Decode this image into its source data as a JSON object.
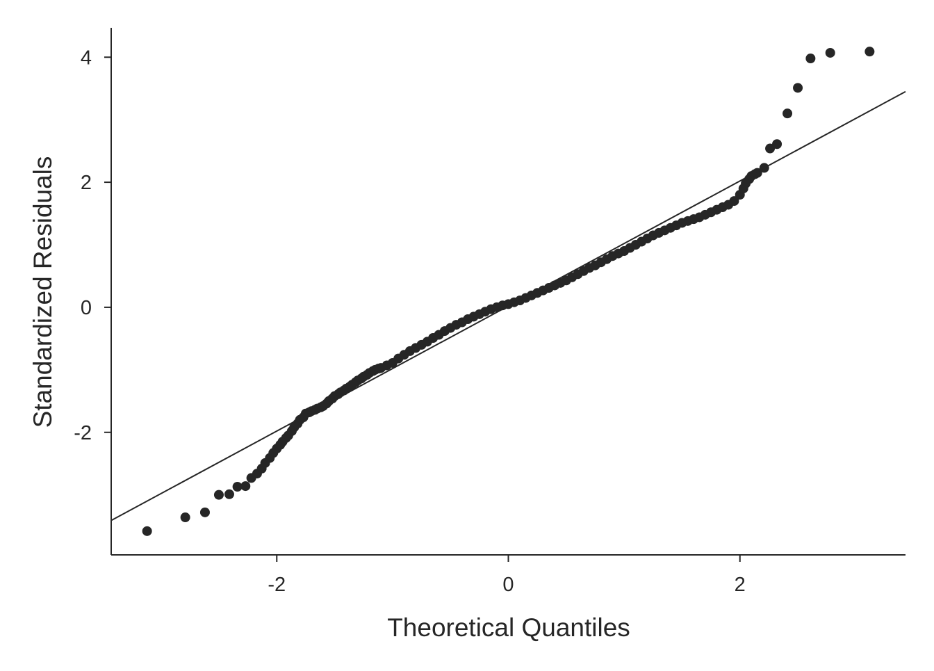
{
  "chart_data": {
    "type": "scatter",
    "title": "",
    "xlabel": "Theoretical Quantiles",
    "ylabel": "Standardized Residuals",
    "xlim": [
      -3.43,
      3.43
    ],
    "ylim": [
      -3.96,
      4.47
    ],
    "xticks": [
      -2,
      0,
      2
    ],
    "yticks": [
      -2,
      0,
      2,
      4
    ],
    "xtick_labels": [
      "-2",
      "0",
      "2"
    ],
    "ytick_labels": [
      "-2",
      "0",
      "2",
      "4"
    ],
    "grid": false,
    "reference_line": {
      "slope": 1.0,
      "intercept": 0.02
    },
    "color": "#262626",
    "points": [
      [
        -3.12,
        -3.58
      ],
      [
        -2.79,
        -3.36
      ],
      [
        -2.62,
        -3.28
      ],
      [
        -2.5,
        -3.0
      ],
      [
        -2.41,
        -2.99
      ],
      [
        -2.34,
        -2.87
      ],
      [
        -2.27,
        -2.86
      ],
      [
        -2.22,
        -2.73
      ],
      [
        -2.17,
        -2.66
      ],
      [
        -2.13,
        -2.58
      ],
      [
        -2.1,
        -2.49
      ],
      [
        -2.06,
        -2.41
      ],
      [
        -2.03,
        -2.33
      ],
      [
        -2.0,
        -2.26
      ],
      [
        -1.97,
        -2.2
      ],
      [
        -1.95,
        -2.15
      ],
      [
        -1.92,
        -2.09
      ],
      [
        -1.9,
        -2.05
      ],
      [
        -1.87,
        -1.98
      ],
      [
        -1.85,
        -1.92
      ],
      [
        -1.82,
        -1.86
      ],
      [
        -1.8,
        -1.8
      ],
      [
        -1.77,
        -1.76
      ],
      [
        -1.75,
        -1.7
      ],
      [
        -1.72,
        -1.68
      ],
      [
        -1.7,
        -1.66
      ],
      [
        -1.67,
        -1.64
      ],
      [
        -1.65,
        -1.62
      ],
      [
        -1.62,
        -1.6
      ],
      [
        -1.6,
        -1.58
      ],
      [
        -1.57,
        -1.54
      ],
      [
        -1.55,
        -1.5
      ],
      [
        -1.52,
        -1.46
      ],
      [
        -1.5,
        -1.42
      ],
      [
        -1.47,
        -1.39
      ],
      [
        -1.45,
        -1.36
      ],
      [
        -1.42,
        -1.33
      ],
      [
        -1.4,
        -1.3
      ],
      [
        -1.37,
        -1.27
      ],
      [
        -1.35,
        -1.24
      ],
      [
        -1.32,
        -1.2
      ],
      [
        -1.3,
        -1.17
      ],
      [
        -1.27,
        -1.14
      ],
      [
        -1.25,
        -1.11
      ],
      [
        -1.22,
        -1.08
      ],
      [
        -1.2,
        -1.05
      ],
      [
        -1.17,
        -1.02
      ],
      [
        -1.15,
        -1.0
      ],
      [
        -1.12,
        -0.98
      ],
      [
        -1.1,
        -0.97
      ],
      [
        -1.05,
        -0.93
      ],
      [
        -1.0,
        -0.89
      ],
      [
        -0.95,
        -0.82
      ],
      [
        -0.9,
        -0.76
      ],
      [
        -0.85,
        -0.7
      ],
      [
        -0.8,
        -0.65
      ],
      [
        -0.75,
        -0.6
      ],
      [
        -0.7,
        -0.55
      ],
      [
        -0.65,
        -0.49
      ],
      [
        -0.6,
        -0.44
      ],
      [
        -0.55,
        -0.38
      ],
      [
        -0.5,
        -0.33
      ],
      [
        -0.45,
        -0.28
      ],
      [
        -0.4,
        -0.24
      ],
      [
        -0.35,
        -0.19
      ],
      [
        -0.3,
        -0.15
      ],
      [
        -0.25,
        -0.11
      ],
      [
        -0.2,
        -0.07
      ],
      [
        -0.15,
        -0.03
      ],
      [
        -0.1,
        0.0
      ],
      [
        -0.05,
        0.03
      ],
      [
        0.0,
        0.05
      ],
      [
        0.05,
        0.08
      ],
      [
        0.1,
        0.11
      ],
      [
        0.15,
        0.15
      ],
      [
        0.2,
        0.19
      ],
      [
        0.25,
        0.23
      ],
      [
        0.3,
        0.27
      ],
      [
        0.35,
        0.31
      ],
      [
        0.4,
        0.35
      ],
      [
        0.45,
        0.39
      ],
      [
        0.5,
        0.43
      ],
      [
        0.55,
        0.48
      ],
      [
        0.6,
        0.53
      ],
      [
        0.65,
        0.58
      ],
      [
        0.7,
        0.63
      ],
      [
        0.75,
        0.67
      ],
      [
        0.8,
        0.72
      ],
      [
        0.85,
        0.77
      ],
      [
        0.9,
        0.82
      ],
      [
        0.95,
        0.86
      ],
      [
        1.0,
        0.9
      ],
      [
        1.05,
        0.95
      ],
      [
        1.1,
        1.0
      ],
      [
        1.15,
        1.05
      ],
      [
        1.2,
        1.1
      ],
      [
        1.25,
        1.15
      ],
      [
        1.3,
        1.19
      ],
      [
        1.35,
        1.23
      ],
      [
        1.4,
        1.27
      ],
      [
        1.45,
        1.31
      ],
      [
        1.5,
        1.35
      ],
      [
        1.55,
        1.38
      ],
      [
        1.6,
        1.41
      ],
      [
        1.65,
        1.44
      ],
      [
        1.7,
        1.48
      ],
      [
        1.75,
        1.52
      ],
      [
        1.8,
        1.56
      ],
      [
        1.85,
        1.6
      ],
      [
        1.9,
        1.64
      ],
      [
        1.95,
        1.7
      ],
      [
        2.0,
        1.8
      ],
      [
        2.03,
        1.9
      ],
      [
        2.05,
        1.98
      ],
      [
        2.08,
        2.05
      ],
      [
        2.1,
        2.1
      ],
      [
        2.13,
        2.13
      ],
      [
        2.15,
        2.15
      ],
      [
        2.21,
        2.23
      ],
      [
        2.26,
        2.54
      ],
      [
        2.32,
        2.61
      ],
      [
        2.41,
        3.1
      ],
      [
        2.5,
        3.51
      ],
      [
        2.61,
        3.98
      ],
      [
        2.78,
        4.07
      ],
      [
        3.12,
        4.09
      ]
    ]
  }
}
